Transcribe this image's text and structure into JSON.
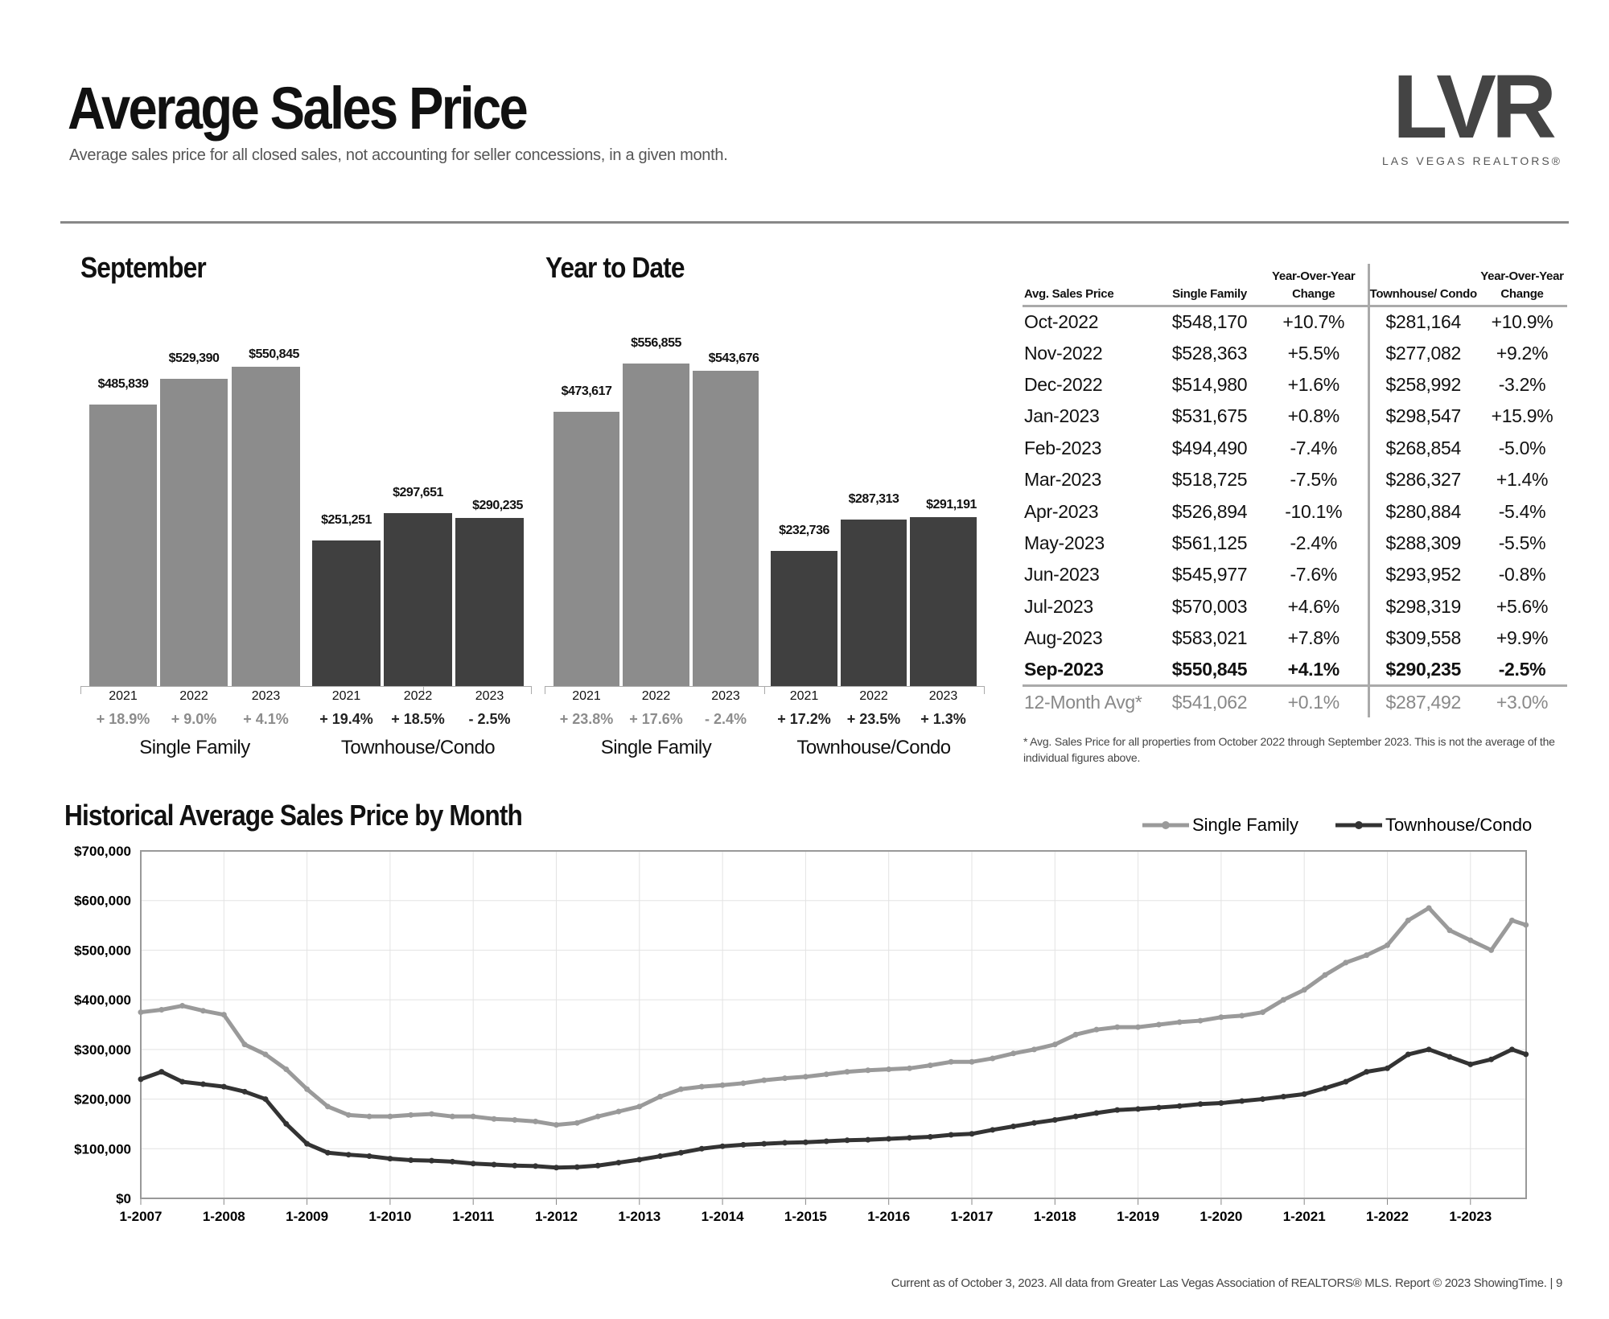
{
  "header": {
    "title": "Average Sales Price",
    "subtitle": "Average sales price for all closed sales, not accounting for seller concessions, in a given month.",
    "logo_text": "LVR",
    "logo_subtext": "LAS VEGAS REALTORS®"
  },
  "colors": {
    "single_family_bar": "#8c8c8c",
    "townhouse_bar": "#404040",
    "single_family_line": "#9a9a9a",
    "townhouse_line": "#333333"
  },
  "chart_data": [
    {
      "type": "bar",
      "title": "September",
      "groups": [
        {
          "name": "Single Family",
          "categories": [
            "2021",
            "2022",
            "2023"
          ],
          "values": [
            485839,
            529390,
            550845
          ],
          "labels": [
            "$485,839",
            "$529,390",
            "$550,845"
          ],
          "changes": [
            "+ 18.9%",
            "+ 9.0%",
            "+ 4.1%"
          ]
        },
        {
          "name": "Townhouse/Condo",
          "categories": [
            "2021",
            "2022",
            "2023"
          ],
          "values": [
            251251,
            297651,
            290235
          ],
          "labels": [
            "$251,251",
            "$297,651",
            "$290,235"
          ],
          "changes": [
            "+ 19.4%",
            "+ 18.5%",
            "- 2.5%"
          ]
        }
      ]
    },
    {
      "type": "bar",
      "title": "Year to Date",
      "groups": [
        {
          "name": "Single Family",
          "categories": [
            "2021",
            "2022",
            "2023"
          ],
          "values": [
            473617,
            556855,
            543676
          ],
          "labels": [
            "$473,617",
            "$556,855",
            "$543,676"
          ],
          "changes": [
            "+ 23.8%",
            "+ 17.6%",
            "- 2.4%"
          ]
        },
        {
          "name": "Townhouse/Condo",
          "categories": [
            "2021",
            "2022",
            "2023"
          ],
          "values": [
            232736,
            287313,
            291191
          ],
          "labels": [
            "$232,736",
            "$287,313",
            "$291,191"
          ],
          "changes": [
            "+ 17.2%",
            "+ 23.5%",
            "+ 1.3%"
          ]
        }
      ]
    },
    {
      "type": "line",
      "title": "Historical Average Sales Price by Month",
      "legend": "top-right",
      "grid": true,
      "ylim": [
        0,
        700000
      ],
      "yticks": [
        "$0",
        "$100,000",
        "$200,000",
        "$300,000",
        "$400,000",
        "$500,000",
        "$600,000",
        "$700,000"
      ],
      "xticks": [
        "1-2007",
        "1-2008",
        "1-2009",
        "1-2010",
        "1-2011",
        "1-2012",
        "1-2013",
        "1-2014",
        "1-2015",
        "1-2016",
        "1-2017",
        "1-2018",
        "1-2019",
        "1-2020",
        "1-2021",
        "1-2022",
        "1-2023"
      ],
      "x": [
        "2007-01",
        "2007-04",
        "2007-07",
        "2007-10",
        "2008-01",
        "2008-04",
        "2008-07",
        "2008-10",
        "2009-01",
        "2009-04",
        "2009-07",
        "2009-10",
        "2010-01",
        "2010-04",
        "2010-07",
        "2010-10",
        "2011-01",
        "2011-04",
        "2011-07",
        "2011-10",
        "2012-01",
        "2012-04",
        "2012-07",
        "2012-10",
        "2013-01",
        "2013-04",
        "2013-07",
        "2013-10",
        "2014-01",
        "2014-04",
        "2014-07",
        "2014-10",
        "2015-01",
        "2015-04",
        "2015-07",
        "2015-10",
        "2016-01",
        "2016-04",
        "2016-07",
        "2016-10",
        "2017-01",
        "2017-04",
        "2017-07",
        "2017-10",
        "2018-01",
        "2018-04",
        "2018-07",
        "2018-10",
        "2019-01",
        "2019-04",
        "2019-07",
        "2019-10",
        "2020-01",
        "2020-04",
        "2020-07",
        "2020-10",
        "2021-01",
        "2021-04",
        "2021-07",
        "2021-10",
        "2022-01",
        "2022-04",
        "2022-07",
        "2022-10",
        "2023-01",
        "2023-04",
        "2023-07",
        "2023-09"
      ],
      "series": [
        {
          "name": "Single Family",
          "values": [
            375000,
            380000,
            388000,
            378000,
            370000,
            310000,
            290000,
            260000,
            220000,
            185000,
            168000,
            165000,
            165000,
            168000,
            170000,
            165000,
            165000,
            160000,
            158000,
            155000,
            148000,
            152000,
            165000,
            175000,
            185000,
            205000,
            220000,
            225000,
            228000,
            232000,
            238000,
            242000,
            245000,
            250000,
            255000,
            258000,
            260000,
            262000,
            268000,
            275000,
            275000,
            282000,
            292000,
            300000,
            310000,
            330000,
            340000,
            345000,
            345000,
            350000,
            355000,
            358000,
            365000,
            368000,
            375000,
            400000,
            420000,
            450000,
            475000,
            490000,
            510000,
            560000,
            585000,
            540000,
            520000,
            500000,
            560000,
            550845
          ]
        },
        {
          "name": "Townhouse/Condo",
          "values": [
            240000,
            255000,
            235000,
            230000,
            225000,
            215000,
            200000,
            150000,
            110000,
            92000,
            88000,
            85000,
            80000,
            77000,
            76000,
            74000,
            70000,
            68000,
            66000,
            65000,
            62000,
            63000,
            66000,
            72000,
            78000,
            85000,
            92000,
            100000,
            105000,
            108000,
            110000,
            112000,
            113000,
            115000,
            117000,
            118000,
            120000,
            122000,
            124000,
            128000,
            130000,
            138000,
            145000,
            152000,
            158000,
            165000,
            172000,
            178000,
            180000,
            183000,
            186000,
            190000,
            192000,
            196000,
            200000,
            205000,
            210000,
            222000,
            235000,
            255000,
            262000,
            290000,
            300000,
            285000,
            270000,
            280000,
            300000,
            290235
          ]
        }
      ]
    }
  ],
  "table": {
    "headers": [
      "Avg. Sales Price",
      "Single Family",
      "Year-Over-Year Change",
      "Townhouse/ Condo",
      "Year-Over-Year Change"
    ],
    "rows": [
      [
        "Oct-2022",
        "$548,170",
        "+10.7%",
        "$281,164",
        "+10.9%"
      ],
      [
        "Nov-2022",
        "$528,363",
        "+5.5%",
        "$277,082",
        "+9.2%"
      ],
      [
        "Dec-2022",
        "$514,980",
        "+1.6%",
        "$258,992",
        "-3.2%"
      ],
      [
        "Jan-2023",
        "$531,675",
        "+0.8%",
        "$298,547",
        "+15.9%"
      ],
      [
        "Feb-2023",
        "$494,490",
        "-7.4%",
        "$268,854",
        "-5.0%"
      ],
      [
        "Mar-2023",
        "$518,725",
        "-7.5%",
        "$286,327",
        "+1.4%"
      ],
      [
        "Apr-2023",
        "$526,894",
        "-10.1%",
        "$280,884",
        "-5.4%"
      ],
      [
        "May-2023",
        "$561,125",
        "-2.4%",
        "$288,309",
        "-5.5%"
      ],
      [
        "Jun-2023",
        "$545,977",
        "-7.6%",
        "$293,952",
        "-0.8%"
      ],
      [
        "Jul-2023",
        "$570,003",
        "+4.6%",
        "$298,319",
        "+5.6%"
      ],
      [
        "Aug-2023",
        "$583,021",
        "+7.8%",
        "$309,558",
        "+9.9%"
      ],
      [
        "Sep-2023",
        "$550,845",
        "+4.1%",
        "$290,235",
        "-2.5%"
      ]
    ],
    "avg_row": [
      "12-Month Avg*",
      "$541,062",
      "+0.1%",
      "$287,492",
      "+3.0%"
    ],
    "footnote": "* Avg. Sales Price for all properties from October 2022 through September 2023. This is not the average of the individual figures above."
  },
  "footer": "Current as of October 3, 2023. All data from Greater Las Vegas Association of REALTORS® MLS. Report © 2023 ShowingTime.  |  9"
}
